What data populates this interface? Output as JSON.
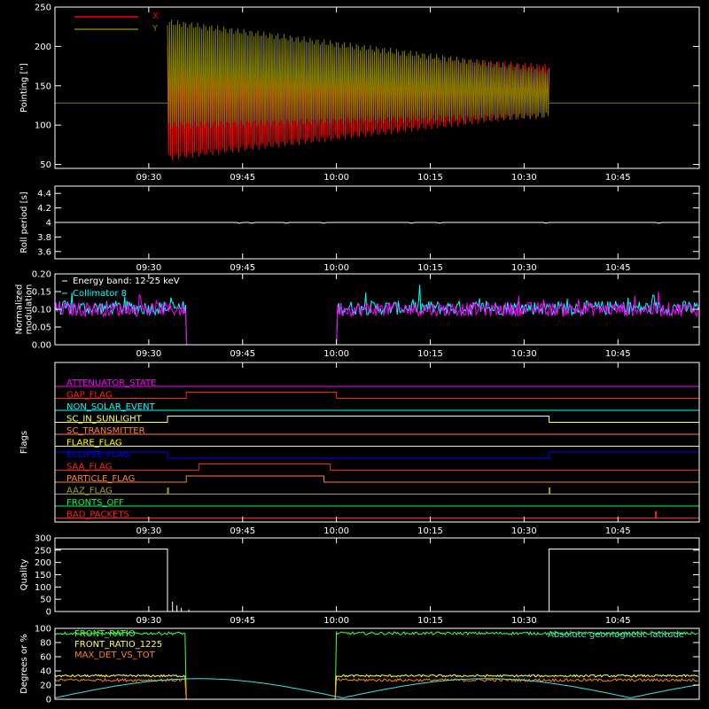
{
  "colors": {
    "background": "#000000",
    "axes": "#ffffff",
    "x_series": "#ff0000",
    "y_series": "#808000",
    "flag_pink": "#ff00ff",
    "flag_red": "#ff2020",
    "flag_cyan": "#00ffff",
    "flag_yellow": "#ffff60",
    "flag_orange": "#ff8040",
    "flag_blue": "#0000ff",
    "flag_olive": "#a0a030",
    "flag_green": "#00ff40",
    "ratio_green": "#40ff40",
    "ratio_yellow": "#ffff60",
    "ratio_orange": "#ff8000",
    "altitude_cyan": "#40e0e0"
  },
  "chart_data": [
    {
      "id": "pointing",
      "type": "line",
      "ylabel": "Pointing [\"]",
      "ylim": [
        45,
        250
      ],
      "yticks": [
        50,
        100,
        150,
        200,
        250
      ],
      "xticks": [
        "09:30",
        "09:45",
        "10:00",
        "10:15",
        "10:30",
        "10:45"
      ],
      "legend": [
        "X",
        "Y"
      ],
      "legend_position": "top-left",
      "baseline": 128,
      "active_interval": [
        "09:33",
        "10:34"
      ],
      "series": [
        {
          "name": "X",
          "start_range": [
            55,
            205
          ],
          "end_range": [
            112,
            178
          ]
        },
        {
          "name": "Y",
          "start_range": [
            95,
            235
          ],
          "end_range": [
            108,
            172
          ]
        }
      ]
    },
    {
      "id": "roll_period",
      "type": "line",
      "ylabel": "Roll period [s]",
      "ylim": [
        3.5,
        4.5
      ],
      "yticks": [
        3.6,
        3.8,
        4.0,
        4.2,
        4.4
      ],
      "xticks": [
        "09:30",
        "09:45",
        "10:00",
        "10:15",
        "10:30",
        "10:45"
      ],
      "value": 4.0
    },
    {
      "id": "modulation",
      "type": "line",
      "ylabel": [
        "Normalized",
        "modulation"
      ],
      "ylim": [
        0,
        0.2
      ],
      "yticks": [
        0.0,
        0.05,
        0.1,
        0.15,
        0.2
      ],
      "yticklabels": [
        "0.00",
        "0.05",
        "0.10",
        "0.15",
        "0.20"
      ],
      "xticks": [
        "09:30",
        "09:45",
        "10:00",
        "10:15",
        "10:30",
        "10:45"
      ],
      "legend": [
        "Energy band: 12-25 keV",
        "Collimator 8"
      ],
      "legend_position": "top-left",
      "typical_level": 0.1,
      "gap_interval": [
        "09:36",
        "10:00"
      ]
    },
    {
      "id": "flags",
      "type": "line",
      "ylabel": "Flags",
      "xticks": [
        "09:30",
        "09:45",
        "10:00",
        "10:15",
        "10:30",
        "10:45"
      ],
      "flags": [
        {
          "label": "ATTENUATOR_STATE",
          "color": "#ff00ff",
          "high": []
        },
        {
          "label": "GAP_FLAG",
          "color": "#ff2020",
          "high": [
            [
              "09:36",
              "10:00"
            ]
          ]
        },
        {
          "label": "NON_SOLAR_EVENT",
          "color": "#00ffff",
          "high": []
        },
        {
          "label": "SC_IN_SUNLIGHT",
          "color": "#ffff60",
          "high": [
            [
              "09:33",
              "10:34"
            ]
          ]
        },
        {
          "label": "SC_TRANSMITTER",
          "color": "#ff8040",
          "high": []
        },
        {
          "label": "FLARE_FLAG",
          "color": "#ffff00",
          "high": []
        },
        {
          "label": "ECLIPSE_FLAG",
          "color": "#0000ff",
          "high": [
            [
              "09:15",
              "09:33"
            ],
            [
              "10:34",
              "10:58"
            ]
          ]
        },
        {
          "label": "SAA_FLAG",
          "color": "#ff2020",
          "high": [
            [
              "09:38",
              "09:59"
            ]
          ]
        },
        {
          "label": "PARTICLE_FLAG",
          "color": "#ff8040",
          "high": [
            [
              "09:36",
              "09:58"
            ]
          ]
        },
        {
          "label": "AAZ_FLAG",
          "color": "#a0a030",
          "high": [
            [
              "09:33",
              "09:33"
            ],
            [
              "10:34",
              "10:34"
            ]
          ]
        },
        {
          "label": "FRONTS_OFF",
          "color": "#00ff40",
          "high": []
        },
        {
          "label": "BAD_PACKETS",
          "color": "#ff2020",
          "high": [
            [
              "10:51",
              "10:51"
            ]
          ]
        }
      ]
    },
    {
      "id": "quality",
      "type": "line",
      "ylabel": "Quality",
      "ylim": [
        0,
        300
      ],
      "yticks": [
        0,
        50,
        100,
        150,
        200,
        250,
        300
      ],
      "xticks": [
        "09:30",
        "09:45",
        "10:00",
        "10:15",
        "10:30",
        "10:45"
      ],
      "high_level": 255,
      "low_interval": [
        "09:33",
        "10:34"
      ]
    },
    {
      "id": "ratios",
      "type": "line",
      "ylabel": "Degrees or %",
      "ylim": [
        0,
        100
      ],
      "yticks": [
        0,
        20,
        40,
        60,
        80,
        100
      ],
      "legend": [
        "FRONT_RATIO",
        "FRONT_RATIO_1225",
        "MAX_DET_VS_TOT"
      ],
      "note": "Absolute geomagnetic latitude",
      "gap_interval": [
        "09:36",
        "10:00"
      ],
      "series": [
        {
          "name": "FRONT_RATIO",
          "level": 93
        },
        {
          "name": "FRONT_RATIO_1225",
          "level": 33
        },
        {
          "name": "MAX_DET_VS_TOT",
          "level": 27
        },
        {
          "name": "Absolute geomagnetic latitude",
          "min": 2,
          "max": 29
        }
      ]
    }
  ]
}
